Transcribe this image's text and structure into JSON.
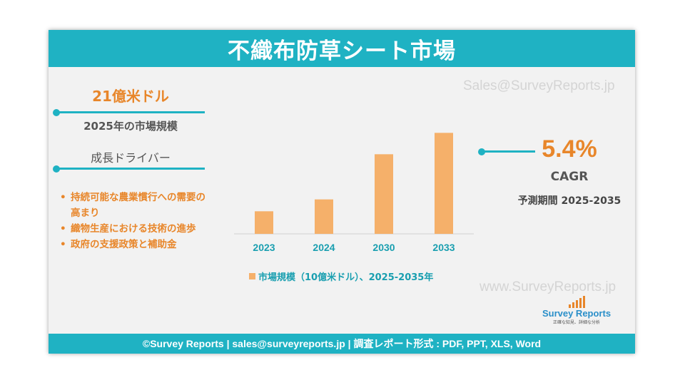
{
  "header": {
    "title": "不織布防草シート市場"
  },
  "watermarks": {
    "top": "Sales@SurveyReports.jp",
    "bottom": "www.SurveyReports.jp"
  },
  "market": {
    "value": "21億米ドル",
    "caption": "2025年の市場規模"
  },
  "drivers": {
    "title": "成長ドライバー",
    "items": [
      "持続可能な農業慣行への需要の高まり",
      "織物生産における技術の進歩",
      "政府の支援政策と補助金"
    ]
  },
  "cagr": {
    "value": "5.4%",
    "label": "CAGR",
    "forecast": "予測期間 2025-2035"
  },
  "logo": {
    "name": "Survey Reports",
    "tagline": "正確な知見、詳細な分析"
  },
  "footer": {
    "text": "©Survey Reports | sales@surveyreports.jp |  調査レポート形式 : PDF, PPT, XLS, Word"
  },
  "colors": {
    "accent": "#1fb2c3",
    "bar": "#f5b06a",
    "highlight": "#e8862a"
  },
  "chart_data": {
    "type": "bar",
    "categories": [
      "2023",
      "2024",
      "2030",
      "2033"
    ],
    "values": [
      1.9,
      2.9,
      6.7,
      8.5
    ],
    "legend": "市場規模（10億米ドル）、2025-2035年",
    "ylim": [
      0,
      9
    ],
    "grid": false,
    "legend_position": "bottom"
  }
}
